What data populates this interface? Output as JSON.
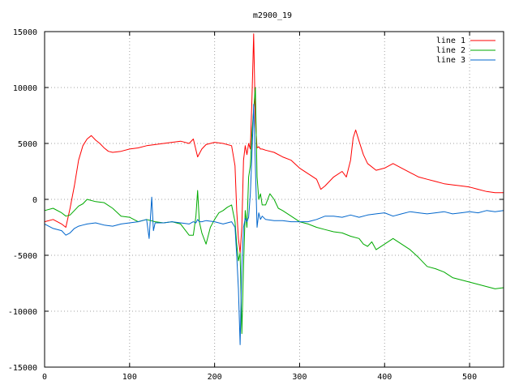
{
  "chart_data": {
    "type": "line",
    "title": "m2900_19",
    "xlabel": "",
    "ylabel": "",
    "xlim": [
      0,
      540
    ],
    "ylim": [
      -15000,
      15000
    ],
    "xticks": [
      0,
      100,
      200,
      300,
      400,
      500
    ],
    "yticks": [
      -15000,
      -10000,
      -5000,
      0,
      5000,
      10000,
      15000
    ],
    "grid": true,
    "legend_position": "top-right",
    "series": [
      {
        "name": "line 1",
        "color": "#ff0000",
        "x": [
          0,
          10,
          20,
          25,
          30,
          35,
          40,
          45,
          50,
          55,
          60,
          65,
          70,
          75,
          80,
          90,
          100,
          110,
          120,
          130,
          140,
          150,
          160,
          170,
          175,
          180,
          185,
          190,
          200,
          210,
          220,
          224,
          226,
          228,
          230,
          232,
          234,
          236,
          238,
          240,
          242,
          244,
          246,
          248,
          250,
          252,
          254,
          256,
          260,
          270,
          280,
          290,
          300,
          310,
          320,
          325,
          330,
          340,
          350,
          355,
          360,
          363,
          366,
          370,
          375,
          380,
          390,
          400,
          410,
          420,
          430,
          440,
          450,
          460,
          470,
          480,
          490,
          500,
          510,
          520,
          530,
          540
        ],
        "y": [
          -2000,
          -1800,
          -2200,
          -2500,
          -800,
          1200,
          3500,
          4800,
          5400,
          5700,
          5300,
          5000,
          4600,
          4300,
          4200,
          4300,
          4500,
          4600,
          4800,
          4900,
          5000,
          5100,
          5200,
          5000,
          5400,
          3800,
          4500,
          4900,
          5100,
          5000,
          4800,
          3000,
          -1000,
          -3500,
          -4800,
          -2500,
          3500,
          4800,
          4000,
          5000,
          4500,
          9000,
          14800,
          7000,
          4600,
          4700,
          4500,
          4500,
          4400,
          4200,
          3800,
          3500,
          2800,
          2300,
          1800,
          900,
          1200,
          2000,
          2500,
          2000,
          3500,
          5500,
          6200,
          5200,
          4000,
          3200,
          2600,
          2800,
          3200,
          2800,
          2400,
          2000,
          1800,
          1600,
          1400,
          1300,
          1200,
          1100,
          900,
          700,
          600,
          600
        ]
      },
      {
        "name": "line 2",
        "color": "#00aa00",
        "x": [
          0,
          10,
          20,
          25,
          30,
          35,
          40,
          45,
          50,
          60,
          70,
          80,
          90,
          100,
          110,
          120,
          130,
          140,
          150,
          160,
          170,
          175,
          178,
          180,
          182,
          185,
          190,
          195,
          200,
          205,
          210,
          215,
          220,
          224,
          226,
          228,
          230,
          232,
          234,
          236,
          238,
          240,
          242,
          244,
          246,
          248,
          250,
          252,
          254,
          256,
          260,
          265,
          270,
          275,
          280,
          290,
          300,
          310,
          320,
          330,
          340,
          350,
          360,
          370,
          375,
          380,
          385,
          390,
          400,
          410,
          420,
          430,
          440,
          450,
          460,
          470,
          480,
          490,
          500,
          510,
          520,
          530,
          540
        ],
        "y": [
          -1000,
          -800,
          -1200,
          -1500,
          -1400,
          -1000,
          -600,
          -400,
          0,
          -200,
          -300,
          -800,
          -1500,
          -1600,
          -2000,
          -1800,
          -2000,
          -2100,
          -2000,
          -2200,
          -3200,
          -3200,
          -1500,
          800,
          -2000,
          -3000,
          -4000,
          -2500,
          -1800,
          -1200,
          -1000,
          -700,
          -500,
          -2000,
          -4000,
          -5500,
          -4800,
          -12000,
          -6000,
          -1000,
          -2500,
          2000,
          3000,
          6000,
          8000,
          10000,
          2000,
          0,
          500,
          -500,
          -500,
          500,
          0,
          -800,
          -1000,
          -1500,
          -2000,
          -2200,
          -2500,
          -2700,
          -2900,
          -3000,
          -3300,
          -3500,
          -4000,
          -4200,
          -3800,
          -4500,
          -4000,
          -3500,
          -4000,
          -4500,
          -5200,
          -6000,
          -6200,
          -6500,
          -7000,
          -7200,
          -7400,
          -7600,
          -7800,
          -8000,
          -7900
        ]
      },
      {
        "name": "line 3",
        "color": "#0066cc",
        "x": [
          0,
          10,
          20,
          25,
          30,
          35,
          40,
          45,
          50,
          60,
          70,
          80,
          90,
          100,
          110,
          120,
          123,
          126,
          128,
          130,
          140,
          150,
          160,
          170,
          175,
          178,
          180,
          182,
          185,
          190,
          200,
          210,
          220,
          224,
          226,
          228,
          230,
          232,
          234,
          236,
          238,
          240,
          242,
          244,
          246,
          248,
          250,
          252,
          254,
          256,
          260,
          270,
          280,
          290,
          300,
          310,
          320,
          330,
          340,
          350,
          360,
          370,
          380,
          390,
          400,
          410,
          420,
          430,
          440,
          450,
          460,
          470,
          480,
          490,
          500,
          510,
          520,
          530,
          540
        ],
        "y": [
          -2200,
          -2600,
          -2800,
          -3200,
          -3000,
          -2600,
          -2400,
          -2300,
          -2200,
          -2100,
          -2300,
          -2400,
          -2200,
          -2100,
          -2000,
          -1800,
          -3500,
          200,
          -2800,
          -2100,
          -2100,
          -2000,
          -2100,
          -2200,
          -2000,
          -2100,
          -1800,
          -2000,
          -2000,
          -1900,
          -2000,
          -2200,
          -2000,
          -2500,
          -5000,
          -8000,
          -13000,
          -6000,
          -2500,
          -1700,
          -2000,
          -1600,
          500,
          4000,
          8500,
          3000,
          -2500,
          -1200,
          -1800,
          -1500,
          -1800,
          -1900,
          -1900,
          -2000,
          -2000,
          -2000,
          -1800,
          -1500,
          -1500,
          -1600,
          -1400,
          -1600,
          -1400,
          -1300,
          -1200,
          -1500,
          -1300,
          -1100,
          -1200,
          -1300,
          -1200,
          -1100,
          -1300,
          -1200,
          -1100,
          -1200,
          -1000,
          -1100,
          -1000
        ]
      }
    ]
  }
}
